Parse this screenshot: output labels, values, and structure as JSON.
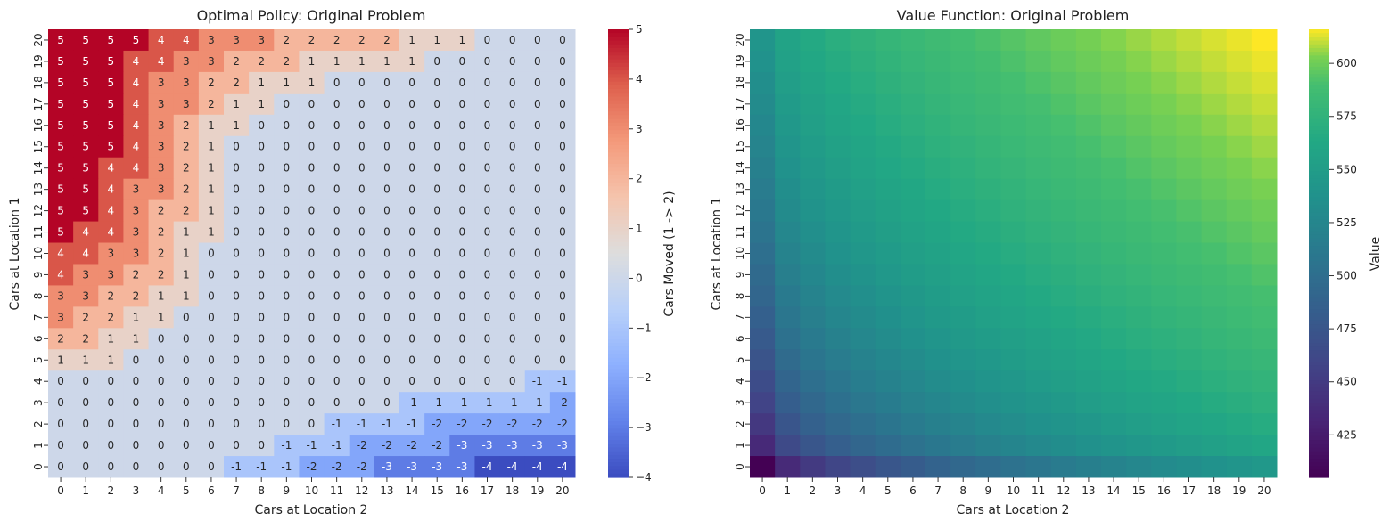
{
  "chart_data": [
    {
      "type": "heatmap",
      "title": "Optimal Policy: Original Problem",
      "xlabel": "Cars at Location 2",
      "ylabel": "Cars at Location 1",
      "colorbar_label": "Cars Moved (1 -> 2)",
      "colormap": "coolwarm",
      "colorbar_ticks": [
        "5",
        "4",
        "3",
        "2",
        "1",
        "0",
        "−1",
        "−2",
        "−3",
        "−4"
      ],
      "vmin": -4,
      "vmax": 5,
      "annotated": true,
      "x": [
        0,
        1,
        2,
        3,
        4,
        5,
        6,
        7,
        8,
        9,
        10,
        11,
        12,
        13,
        14,
        15,
        16,
        17,
        18,
        19,
        20
      ],
      "y_top_to_bottom": [
        20,
        19,
        18,
        17,
        16,
        15,
        14,
        13,
        12,
        11,
        10,
        9,
        8,
        7,
        6,
        5,
        4,
        3,
        2,
        1,
        0
      ],
      "z": [
        [
          5,
          5,
          5,
          5,
          4,
          4,
          3,
          3,
          3,
          2,
          2,
          2,
          2,
          2,
          1,
          1,
          1,
          0,
          0,
          0,
          0
        ],
        [
          5,
          5,
          5,
          4,
          4,
          3,
          3,
          2,
          2,
          2,
          1,
          1,
          1,
          1,
          1,
          0,
          0,
          0,
          0,
          0,
          0
        ],
        [
          5,
          5,
          5,
          4,
          3,
          3,
          2,
          2,
          1,
          1,
          1,
          0,
          0,
          0,
          0,
          0,
          0,
          0,
          0,
          0,
          0
        ],
        [
          5,
          5,
          5,
          4,
          3,
          3,
          2,
          1,
          1,
          0,
          0,
          0,
          0,
          0,
          0,
          0,
          0,
          0,
          0,
          0,
          0
        ],
        [
          5,
          5,
          5,
          4,
          3,
          2,
          1,
          1,
          0,
          0,
          0,
          0,
          0,
          0,
          0,
          0,
          0,
          0,
          0,
          0,
          0
        ],
        [
          5,
          5,
          5,
          4,
          3,
          2,
          1,
          0,
          0,
          0,
          0,
          0,
          0,
          0,
          0,
          0,
          0,
          0,
          0,
          0,
          0
        ],
        [
          5,
          5,
          4,
          4,
          3,
          2,
          1,
          0,
          0,
          0,
          0,
          0,
          0,
          0,
          0,
          0,
          0,
          0,
          0,
          0,
          0
        ],
        [
          5,
          5,
          4,
          3,
          3,
          2,
          1,
          0,
          0,
          0,
          0,
          0,
          0,
          0,
          0,
          0,
          0,
          0,
          0,
          0,
          0
        ],
        [
          5,
          5,
          4,
          3,
          2,
          2,
          1,
          0,
          0,
          0,
          0,
          0,
          0,
          0,
          0,
          0,
          0,
          0,
          0,
          0,
          0
        ],
        [
          5,
          4,
          4,
          3,
          2,
          1,
          1,
          0,
          0,
          0,
          0,
          0,
          0,
          0,
          0,
          0,
          0,
          0,
          0,
          0,
          0
        ],
        [
          4,
          4,
          3,
          3,
          2,
          1,
          0,
          0,
          0,
          0,
          0,
          0,
          0,
          0,
          0,
          0,
          0,
          0,
          0,
          0,
          0
        ],
        [
          4,
          3,
          3,
          2,
          2,
          1,
          0,
          0,
          0,
          0,
          0,
          0,
          0,
          0,
          0,
          0,
          0,
          0,
          0,
          0,
          0
        ],
        [
          3,
          3,
          2,
          2,
          1,
          1,
          0,
          0,
          0,
          0,
          0,
          0,
          0,
          0,
          0,
          0,
          0,
          0,
          0,
          0,
          0
        ],
        [
          3,
          2,
          2,
          1,
          1,
          0,
          0,
          0,
          0,
          0,
          0,
          0,
          0,
          0,
          0,
          0,
          0,
          0,
          0,
          0,
          0
        ],
        [
          2,
          2,
          1,
          1,
          0,
          0,
          0,
          0,
          0,
          0,
          0,
          0,
          0,
          0,
          0,
          0,
          0,
          0,
          0,
          0,
          0
        ],
        [
          1,
          1,
          1,
          0,
          0,
          0,
          0,
          0,
          0,
          0,
          0,
          0,
          0,
          0,
          0,
          0,
          0,
          0,
          0,
          0,
          0
        ],
        [
          0,
          0,
          0,
          0,
          0,
          0,
          0,
          0,
          0,
          0,
          0,
          0,
          0,
          0,
          0,
          0,
          0,
          0,
          0,
          -1,
          -1
        ],
        [
          0,
          0,
          0,
          0,
          0,
          0,
          0,
          0,
          0,
          0,
          0,
          0,
          0,
          0,
          -1,
          -1,
          -1,
          -1,
          -1,
          -1,
          -2
        ],
        [
          0,
          0,
          0,
          0,
          0,
          0,
          0,
          0,
          0,
          0,
          0,
          -1,
          -1,
          -1,
          -1,
          -2,
          -2,
          -2,
          -2,
          -2,
          -2
        ],
        [
          0,
          0,
          0,
          0,
          0,
          0,
          0,
          0,
          0,
          -1,
          -1,
          -1,
          -2,
          -2,
          -2,
          -2,
          -3,
          -3,
          -3,
          -3,
          -3
        ],
        [
          0,
          0,
          0,
          0,
          0,
          0,
          0,
          -1,
          -1,
          -1,
          -2,
          -2,
          -2,
          -3,
          -3,
          -3,
          -3,
          -4,
          -4,
          -4,
          -4
        ]
      ]
    },
    {
      "type": "heatmap",
      "title": "Value Function: Original Problem",
      "xlabel": "Cars at Location 2",
      "ylabel": "Cars at Location 1",
      "colorbar_label": "Value",
      "colormap": "viridis",
      "colorbar_ticks": [
        "600",
        "575",
        "550",
        "525",
        "500",
        "475",
        "450",
        "425"
      ],
      "vmin": 405,
      "vmax": 616,
      "annotated": false,
      "x": [
        0,
        1,
        2,
        3,
        4,
        5,
        6,
        7,
        8,
        9,
        10,
        11,
        12,
        13,
        14,
        15,
        16,
        17,
        18,
        19,
        20
      ],
      "y_top_to_bottom": [
        20,
        19,
        18,
        17,
        16,
        15,
        14,
        13,
        12,
        11,
        10,
        9,
        8,
        7,
        6,
        5,
        4,
        3,
        2,
        1,
        0
      ],
      "approx_model": {
        "note_text": "",
        "corner_values": {
          "loc1_0_loc2_0": 405,
          "loc1_20_loc2_0": 541,
          "loc1_0_loc2_20": 545,
          "loc1_20_loc2_20": 616
        }
      }
    }
  ]
}
